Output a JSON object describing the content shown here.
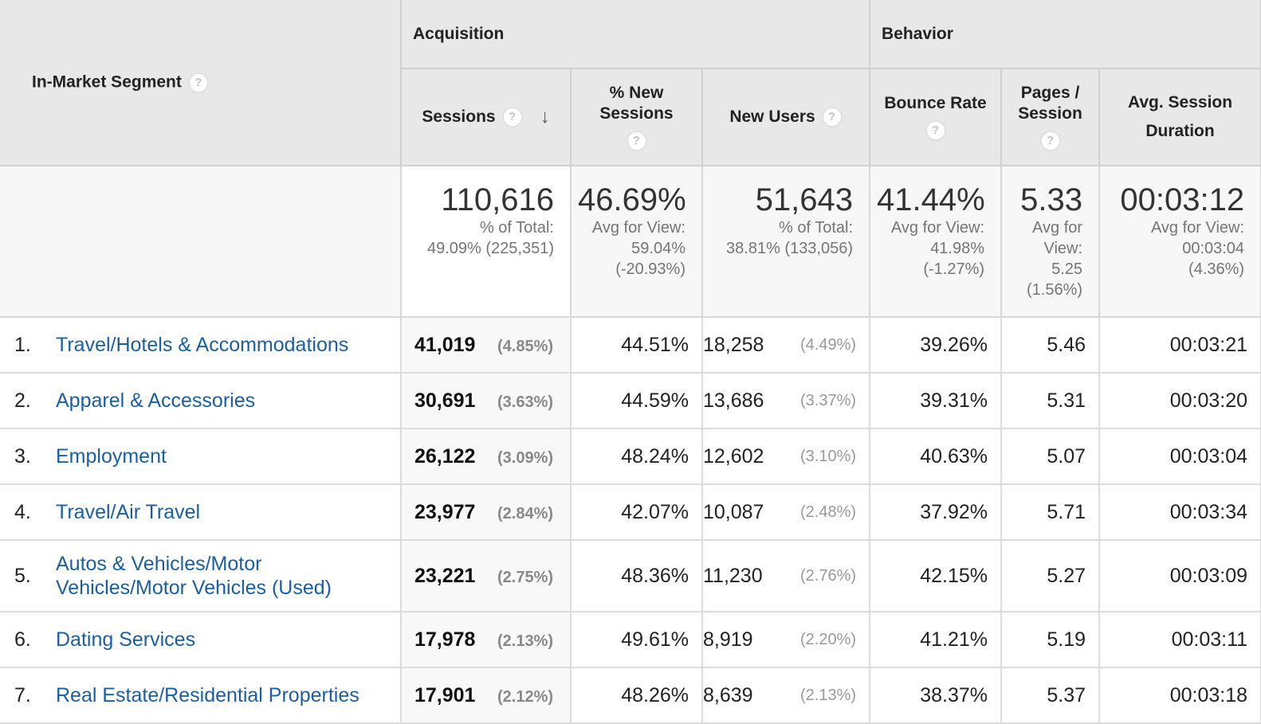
{
  "header": {
    "segment_label": "In-Market Segment",
    "group_acquisition": "Acquisition",
    "group_behavior": "Behavior",
    "columns": {
      "sessions": "Sessions",
      "new_sessions": "% New Sessions",
      "new_users": "New Users",
      "bounce_rate": "Bounce Rate",
      "pages_session": "Pages / Session",
      "avg_duration": "Avg. Session Duration"
    },
    "help_glyph": "?",
    "sort_glyph": "↓"
  },
  "totals": {
    "sessions": {
      "value": "110,616",
      "sub1": "% of Total:",
      "sub2": "49.09% (225,351)"
    },
    "new_sessions": {
      "value": "46.69%",
      "sub1": "Avg for View:",
      "sub2": "59.04%",
      "sub3": "(-20.93%)"
    },
    "new_users": {
      "value": "51,643",
      "sub1": "% of Total:",
      "sub2": "38.81% (133,056)"
    },
    "bounce_rate": {
      "value": "41.44%",
      "sub1": "Avg for View:",
      "sub2": "41.98%",
      "sub3": "(-1.27%)"
    },
    "pages_session": {
      "value": "5.33",
      "sub1": "Avg for",
      "sub2": "View:",
      "sub3": "5.25",
      "sub4": "(1.56%)"
    },
    "avg_duration": {
      "value": "00:03:12",
      "sub1": "Avg for View:",
      "sub2": "00:03:04",
      "sub3": "(4.36%)"
    }
  },
  "rows": [
    {
      "idx": "1.",
      "segment": "Travel/Hotels & Accommodations",
      "sessions": "41,019",
      "sessions_pct": "(4.85%)",
      "new_sessions": "44.51%",
      "new_users": "18,258",
      "new_users_pct": "(4.49%)",
      "bounce": "39.26%",
      "pages": "5.46",
      "duration": "00:03:21"
    },
    {
      "idx": "2.",
      "segment": "Apparel & Accessories",
      "sessions": "30,691",
      "sessions_pct": "(3.63%)",
      "new_sessions": "44.59%",
      "new_users": "13,686",
      "new_users_pct": "(3.37%)",
      "bounce": "39.31%",
      "pages": "5.31",
      "duration": "00:03:20"
    },
    {
      "idx": "3.",
      "segment": "Employment",
      "sessions": "26,122",
      "sessions_pct": "(3.09%)",
      "new_sessions": "48.24%",
      "new_users": "12,602",
      "new_users_pct": "(3.10%)",
      "bounce": "40.63%",
      "pages": "5.07",
      "duration": "00:03:04"
    },
    {
      "idx": "4.",
      "segment": "Travel/Air Travel",
      "sessions": "23,977",
      "sessions_pct": "(2.84%)",
      "new_sessions": "42.07%",
      "new_users": "10,087",
      "new_users_pct": "(2.48%)",
      "bounce": "37.92%",
      "pages": "5.71",
      "duration": "00:03:34"
    },
    {
      "idx": "5.",
      "segment": "Autos & Vehicles/Motor Vehicles/Motor Vehicles (Used)",
      "sessions": "23,221",
      "sessions_pct": "(2.75%)",
      "new_sessions": "48.36%",
      "new_users": "11,230",
      "new_users_pct": "(2.76%)",
      "bounce": "42.15%",
      "pages": "5.27",
      "duration": "00:03:09"
    },
    {
      "idx": "6.",
      "segment": "Dating Services",
      "sessions": "17,978",
      "sessions_pct": "(2.13%)",
      "new_sessions": "49.61%",
      "new_users": "8,919",
      "new_users_pct": "(2.20%)",
      "bounce": "41.21%",
      "pages": "5.19",
      "duration": "00:03:11"
    },
    {
      "idx": "7.",
      "segment": "Real Estate/Residential Properties",
      "sessions": "17,901",
      "sessions_pct": "(2.12%)",
      "new_sessions": "48.26%",
      "new_users": "8,639",
      "new_users_pct": "(2.13%)",
      "bounce": "38.37%",
      "pages": "5.37",
      "duration": "00:03:18"
    }
  ]
}
